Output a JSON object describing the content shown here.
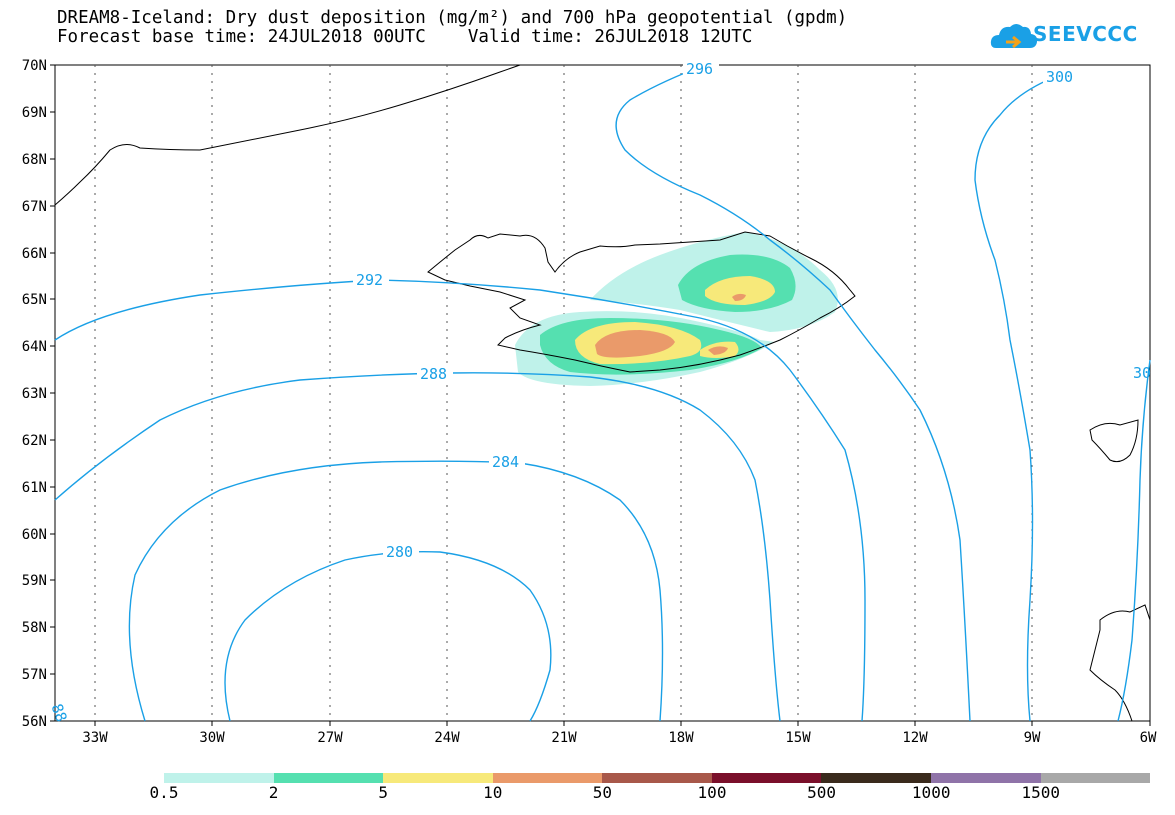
{
  "title": {
    "line1": "DREAM8-Iceland: Dry dust deposition (mg/m²) and 700 hPa geopotential (gpdm)",
    "line2": "Forecast base time: 24JUL2018 00UTC    Valid time: 26JUL2018 12UTC"
  },
  "logo": {
    "text": "SEEVCCC",
    "icon": "cloud-icon",
    "color": "#1aa0e6"
  },
  "axes": {
    "lat_labels": [
      "70N",
      "69N",
      "68N",
      "67N",
      "66N",
      "65N",
      "64N",
      "63N",
      "62N",
      "61N",
      "60N",
      "59N",
      "58N",
      "57N",
      "56N"
    ],
    "lon_labels": [
      "33W",
      "30W",
      "27W",
      "24W",
      "21W",
      "18W",
      "15W",
      "12W",
      "9W",
      "6W"
    ]
  },
  "contours": {
    "color": "#1aa0e6",
    "labels": [
      "296",
      "300",
      "292",
      "288",
      "284",
      "280",
      "30",
      "88"
    ]
  },
  "legend": {
    "labels": [
      "0.5",
      "2",
      "5",
      "10",
      "50",
      "100",
      "500",
      "1000",
      "1500"
    ],
    "colors": [
      "#bff2ea",
      "#55e0b0",
      "#f7e97a",
      "#ea9a6a",
      "#a8584a",
      "#7a0f2a",
      "#3a2a1c",
      "#8f73a8",
      "#a8a8a8"
    ]
  }
}
